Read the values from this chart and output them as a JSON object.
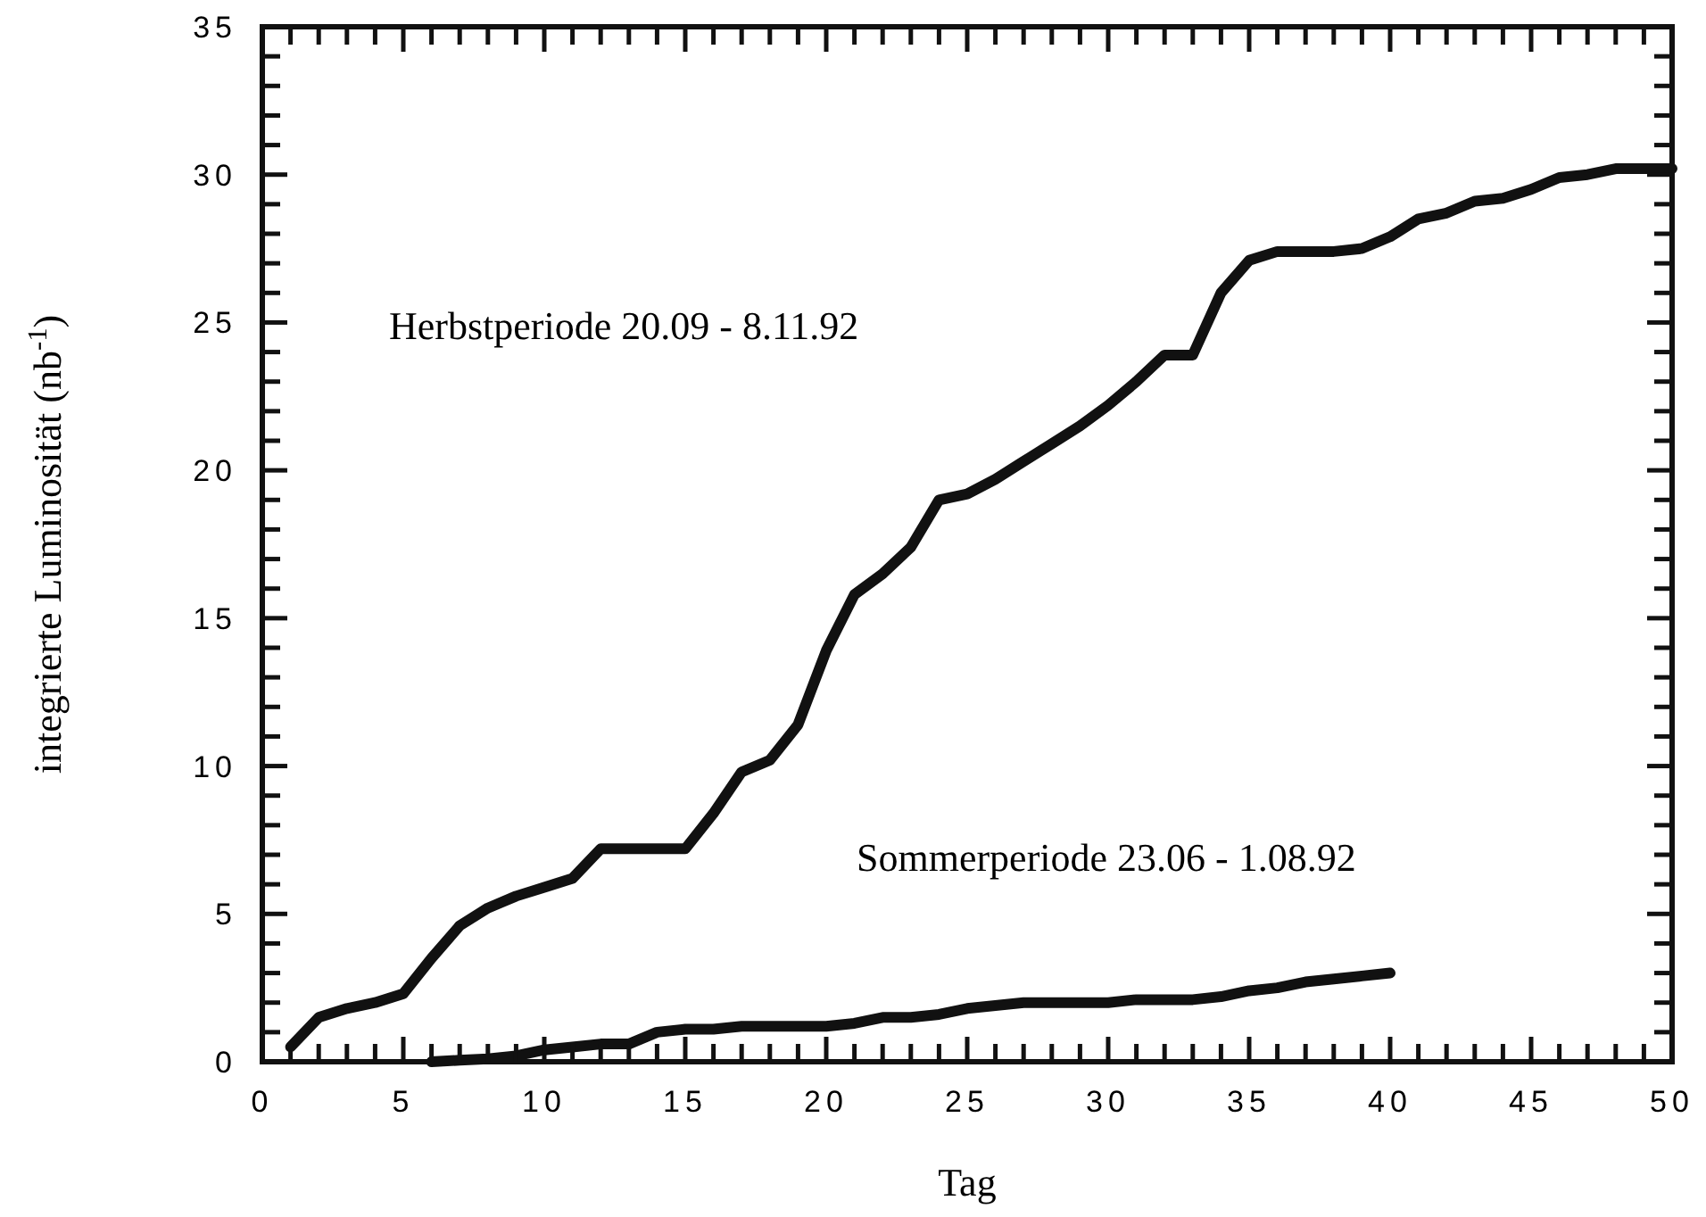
{
  "chart_data": {
    "type": "line",
    "xlabel": "Tag",
    "ylabel": "integrierte Luminosität (nb$^{-1}$)",
    "xlim": [
      0,
      50
    ],
    "ylim": [
      0,
      35
    ],
    "xticks": [
      0,
      {
        "value": 1,
        "label": null
      },
      {
        "value": 2,
        "label": null
      },
      {
        "value": 3,
        "label": null
      },
      {
        "value": 4,
        "label": null
      },
      5,
      {
        "value": 6,
        "label": null
      },
      {
        "value": 7,
        "label": null
      },
      {
        "value": 8,
        "label": null
      },
      {
        "value": 9,
        "label": null
      },
      10,
      {
        "value": 11,
        "label": null
      },
      {
        "value": 12,
        "label": null
      },
      {
        "value": 13,
        "label": null
      },
      {
        "value": 14,
        "label": null
      },
      15,
      {
        "value": 16,
        "label": null
      },
      {
        "value": 17,
        "label": null
      },
      {
        "value": 18,
        "label": null
      },
      {
        "value": 19,
        "label": null
      },
      20,
      {
        "value": 21,
        "label": null
      },
      {
        "value": 22,
        "label": null
      },
      {
        "value": 23,
        "label": null
      },
      {
        "value": 24,
        "label": null
      },
      25,
      {
        "value": 26,
        "label": null
      },
      {
        "value": 27,
        "label": null
      },
      {
        "value": 28,
        "label": null
      },
      {
        "value": 29,
        "label": null
      },
      30,
      {
        "value": 31,
        "label": null
      },
      {
        "value": 32,
        "label": null
      },
      {
        "value": 33,
        "label": null
      },
      {
        "value": 34,
        "label": null
      },
      35,
      {
        "value": 36,
        "label": null
      },
      {
        "value": 37,
        "label": null
      },
      {
        "value": 38,
        "label": null
      },
      {
        "value": 39,
        "label": null
      },
      40,
      {
        "value": 41,
        "label": null
      },
      {
        "value": 42,
        "label": null
      },
      {
        "value": 43,
        "label": null
      },
      {
        "value": 44,
        "label": null
      },
      45,
      {
        "value": 46,
        "label": null
      },
      {
        "value": 47,
        "label": null
      },
      {
        "value": 48,
        "label": null
      },
      {
        "value": 49,
        "label": null
      },
      50
    ],
    "yticks": [
      0,
      {
        "value": 1,
        "label": null
      },
      {
        "value": 2,
        "label": null
      },
      {
        "value": 3,
        "label": null
      },
      {
        "value": 4,
        "label": null
      },
      5,
      {
        "value": 6,
        "label": null
      },
      {
        "value": 7,
        "label": null
      },
      {
        "value": 8,
        "label": null
      },
      {
        "value": 9,
        "label": null
      },
      10,
      {
        "value": 11,
        "label": null
      },
      {
        "value": 12,
        "label": null
      },
      {
        "value": 13,
        "label": null
      },
      {
        "value": 14,
        "label": null
      },
      15,
      {
        "value": 16,
        "label": null
      },
      {
        "value": 17,
        "label": null
      },
      {
        "value": 18,
        "label": null
      },
      {
        "value": 19,
        "label": null
      },
      20,
      {
        "value": 21,
        "label": null
      },
      {
        "value": 22,
        "label": null
      },
      {
        "value": 23,
        "label": null
      },
      {
        "value": 24,
        "label": null
      },
      25,
      {
        "value": 26,
        "label": null
      },
      {
        "value": 27,
        "label": null
      },
      {
        "value": 28,
        "label": null
      },
      {
        "value": 29,
        "label": null
      },
      30,
      {
        "value": 31,
        "label": null
      },
      {
        "value": 32,
        "label": null
      },
      {
        "value": 33,
        "label": null
      },
      {
        "value": 34,
        "label": null
      },
      35
    ],
    "grid": false,
    "marker": "none",
    "line_style": "solid",
    "series": [
      {
        "color": "#111111",
        "x": [
          1,
          2,
          3,
          4,
          5,
          6,
          7,
          8,
          9,
          10,
          11,
          12,
          13,
          14,
          15,
          16,
          17,
          18,
          19,
          20,
          21,
          22,
          23,
          24,
          25,
          26,
          27,
          28,
          29,
          30,
          31,
          32,
          33,
          34,
          35,
          36,
          37,
          38,
          39,
          40,
          41,
          42,
          43,
          44,
          45,
          46,
          47,
          48,
          49,
          50
        ],
        "values": [
          0.5,
          1.5,
          1.8,
          2.0,
          2.3,
          3.5,
          4.6,
          5.2,
          5.6,
          5.9,
          6.2,
          7.2,
          7.2,
          7.2,
          7.2,
          8.4,
          9.8,
          10.2,
          11.4,
          13.9,
          15.8,
          16.5,
          17.4,
          19.0,
          19.2,
          19.7,
          20.3,
          20.9,
          21.5,
          22.2,
          23.0,
          23.9,
          23.9,
          26.0,
          27.1,
          27.4,
          27.4,
          27.4,
          27.5,
          27.9,
          28.5,
          28.7,
          29.1,
          29.2,
          29.5,
          29.9,
          30.0,
          30.2,
          30.2,
          30.2
        ]
      },
      {
        "color": "#111111",
        "x": [
          6,
          7,
          8,
          9,
          10,
          11,
          12,
          13,
          14,
          15,
          16,
          17,
          18,
          19,
          20,
          21,
          22,
          23,
          24,
          25,
          26,
          27,
          28,
          29,
          30,
          31,
          32,
          33,
          34,
          35,
          36,
          37,
          38,
          39,
          40
        ],
        "values": [
          0,
          0.05,
          0.1,
          0.2,
          0.4,
          0.5,
          0.6,
          0.6,
          1.0,
          1.1,
          1.1,
          1.2,
          1.2,
          1.2,
          1.2,
          1.3,
          1.5,
          1.5,
          1.6,
          1.8,
          1.9,
          2.0,
          2.0,
          2.0,
          2.0,
          2.1,
          2.1,
          2.1,
          2.2,
          2.4,
          2.5,
          2.7,
          2.8,
          2.9,
          3.0
        ]
      }
    ],
    "annotations": [
      "Herbstperiode 20.09 - 8.11.92",
      "Sommerperiode 23.06 - 1.08.92"
    ]
  }
}
